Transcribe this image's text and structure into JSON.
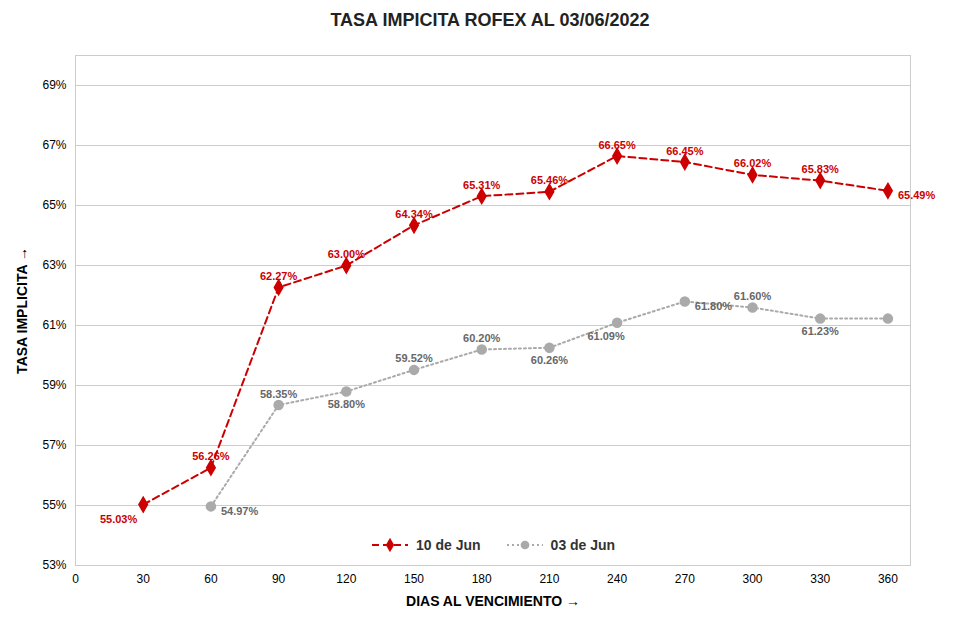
{
  "chart_data": {
    "type": "line",
    "title": "TASA IMPICITA ROFEX AL 03/06/2022",
    "xlabel": "DIAS AL VENCIMIENTO",
    "ylabel": "TASA IMPLICITA",
    "series": [
      {
        "name": "10 de Jun",
        "color": "#CC0000",
        "marker": "diamond",
        "line_style": "dashed",
        "x": [
          30,
          60,
          90,
          120,
          150,
          180,
          210,
          240,
          270,
          300,
          330,
          360
        ],
        "values": [
          55.03,
          56.26,
          62.27,
          63.0,
          64.34,
          65.31,
          65.46,
          66.65,
          66.45,
          66.02,
          65.83,
          65.49
        ],
        "value_labels": [
          "55.03%",
          "56.26%",
          "62.27%",
          "63.00%",
          "64.34%",
          "65.31%",
          "65.46%",
          "66.65%",
          "66.45%",
          "66.02%",
          "65.83%",
          "65.49%"
        ]
      },
      {
        "name": "03 de Jun",
        "color": "#AAAAAA",
        "marker": "circle",
        "line_style": "dotted",
        "x": [
          60,
          90,
          120,
          150,
          180,
          210,
          240,
          270,
          300,
          330,
          360
        ],
        "values": [
          54.97,
          58.35,
          58.8,
          59.52,
          60.2,
          60.26,
          61.09,
          61.8,
          61.6,
          61.23,
          61.23
        ],
        "value_labels": [
          "54.97%",
          "58.35%",
          "58.80%",
          "59.52%",
          "60.20%",
          "60.26%",
          "61.09%",
          "61.80%",
          "61.60%",
          "61.23%",
          null
        ]
      }
    ],
    "xlim": [
      0,
      370
    ],
    "xticks": [
      0,
      30,
      60,
      90,
      120,
      150,
      180,
      210,
      240,
      270,
      300,
      330,
      360
    ],
    "ylim": [
      53,
      70
    ],
    "yticks": [
      {
        "value": 53,
        "label": "53%"
      },
      {
        "value": 55,
        "label": "55%"
      },
      {
        "value": 57,
        "label": "57%"
      },
      {
        "value": 59,
        "label": "59%"
      },
      {
        "value": 61,
        "label": "61%"
      },
      {
        "value": 63,
        "label": "63%"
      },
      {
        "value": 65,
        "label": "65%"
      },
      {
        "value": 67,
        "label": "67%"
      },
      {
        "value": 69,
        "label": "69%"
      }
    ],
    "grid": true,
    "legend": "lower center",
    "data_labels": true
  }
}
